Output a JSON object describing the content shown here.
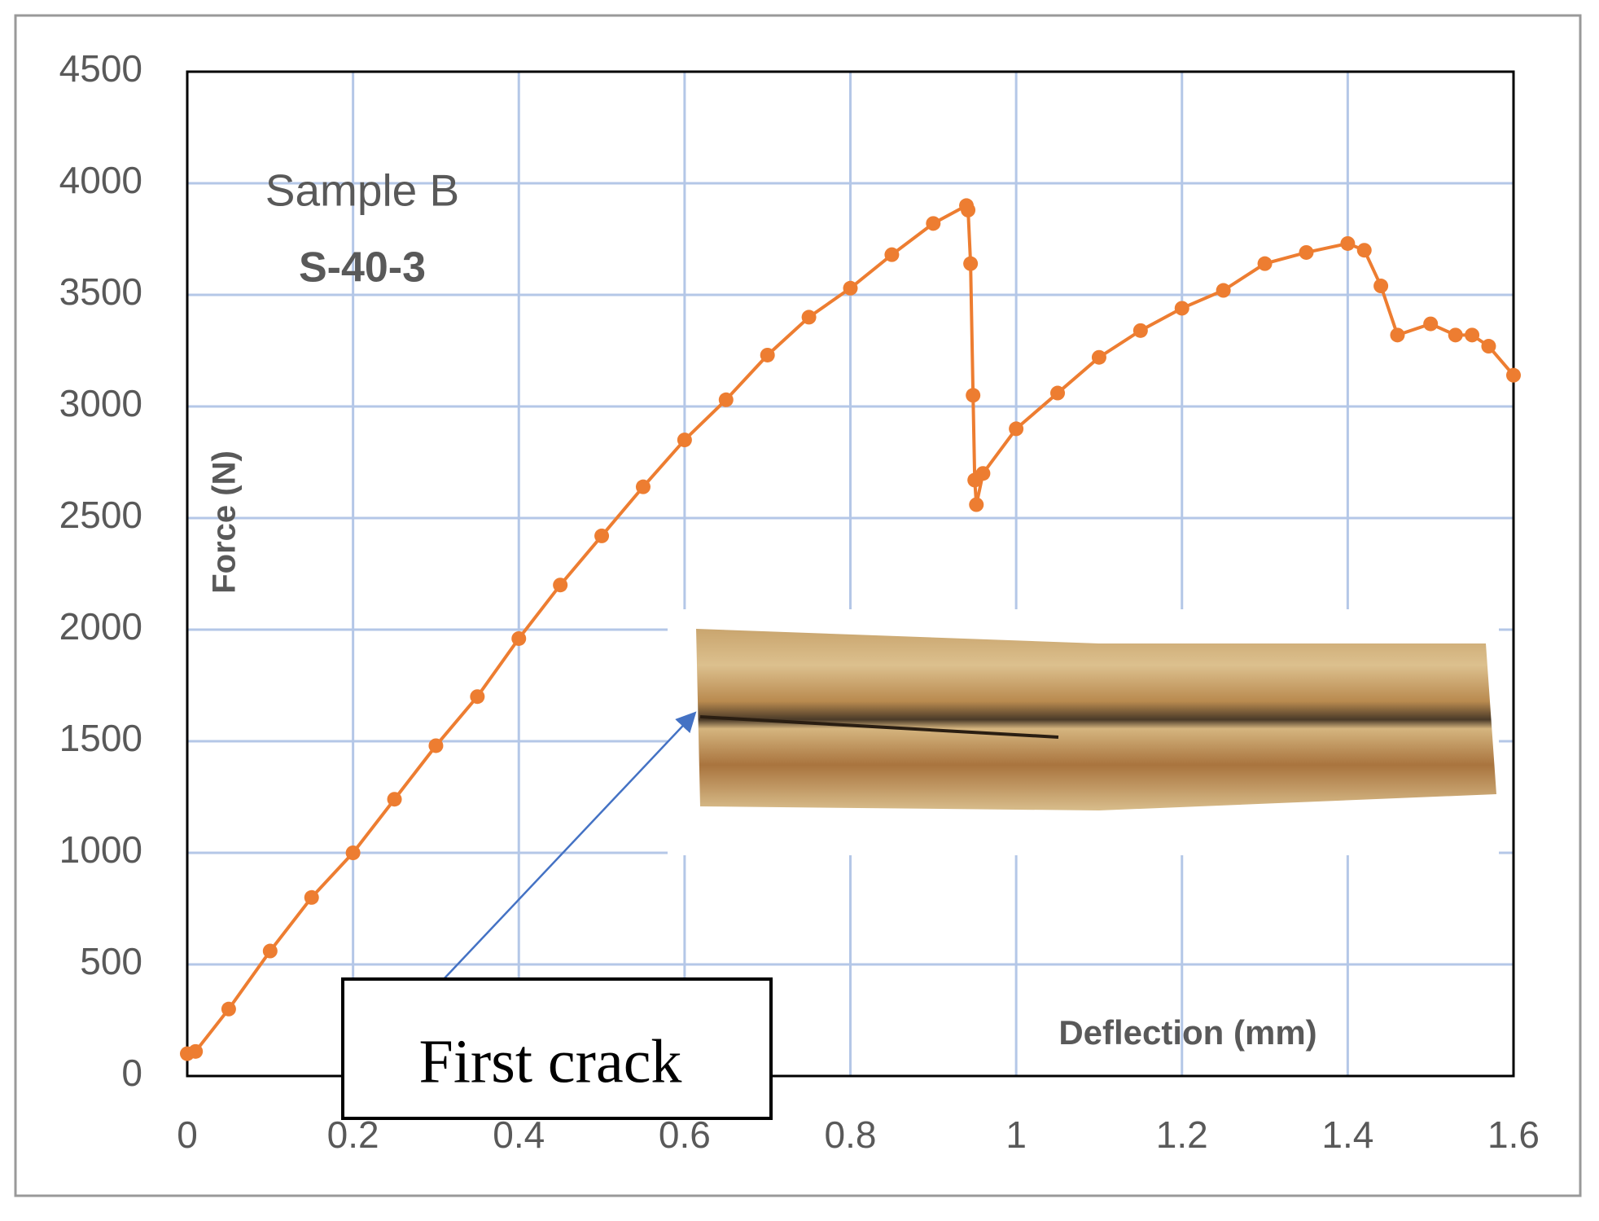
{
  "chart_data": {
    "type": "line",
    "x_label": "Deflection (mm)",
    "y_label": "Force (N)",
    "text_labels": [
      "Sample B",
      "S-40-3"
    ],
    "annotation": "First crack",
    "xlim": [
      0,
      1.6
    ],
    "xticks": [
      0,
      0.2,
      0.4,
      0.6,
      0.8,
      1,
      1.2,
      1.4,
      1.6
    ],
    "ylim": [
      0,
      4500
    ],
    "yticks": [
      0,
      500,
      1000,
      1500,
      2000,
      2500,
      3000,
      3500,
      4000,
      4500
    ],
    "grid": true,
    "series": [
      {
        "color": "#ed7d31",
        "x": [
          0,
          0.01,
          0.05,
          0.1,
          0.15,
          0.2,
          0.25,
          0.3,
          0.35,
          0.4,
          0.45,
          0.5,
          0.55,
          0.6,
          0.65,
          0.7,
          0.75,
          0.8,
          0.85,
          0.9,
          0.94,
          0.942,
          0.945,
          0.948,
          0.95,
          0.952,
          0.96,
          1.0,
          1.05,
          1.1,
          1.15,
          1.2,
          1.25,
          1.3,
          1.35,
          1.4,
          1.42,
          1.44,
          1.46,
          1.5,
          1.53,
          1.55,
          1.57,
          1.6
        ],
        "values": [
          100,
          110,
          300,
          560,
          800,
          1000,
          1240,
          1480,
          1700,
          1960,
          2200,
          2420,
          2640,
          2850,
          3030,
          3230,
          3400,
          3530,
          3680,
          3820,
          3900,
          3880,
          3640,
          3050,
          2670,
          2560,
          2700,
          2900,
          3060,
          3220,
          3340,
          3440,
          3520,
          3640,
          3690,
          3730,
          3700,
          3540,
          3320,
          3370,
          3320,
          3320,
          3270,
          3140
        ]
      }
    ]
  }
}
